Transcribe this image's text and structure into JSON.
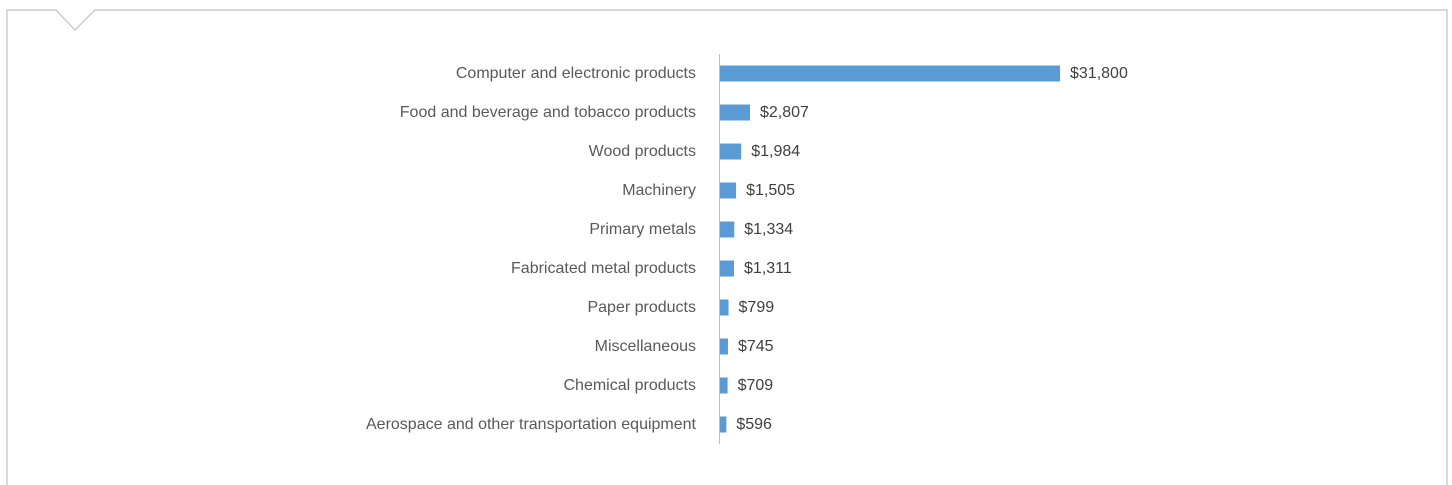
{
  "chart_data": {
    "type": "bar",
    "orientation": "horizontal",
    "categories": [
      "Computer and electronic products",
      "Food and beverage and tobacco products",
      "Wood products",
      "Machinery",
      "Primary metals",
      "Fabricated metal products",
      "Paper products",
      "Miscellaneous",
      "Chemical products",
      "Aerospace and other transportation equipment"
    ],
    "values": [
      31800,
      2807,
      1984,
      1505,
      1334,
      1311,
      799,
      745,
      709,
      596
    ],
    "value_labels": [
      "$31,800",
      "$2,807",
      "$1,984",
      "$1,505",
      "$1,334",
      "$1,311",
      "$799",
      "$745",
      "$709",
      "$596"
    ],
    "title": "",
    "xlabel": "",
    "ylabel": "",
    "xlim": [
      0,
      31800
    ],
    "grid": false,
    "legend": "none",
    "colors": {
      "bar": "#5b9bd5",
      "axis": "#bfbfbf",
      "frame": "#bfbfbf"
    }
  }
}
